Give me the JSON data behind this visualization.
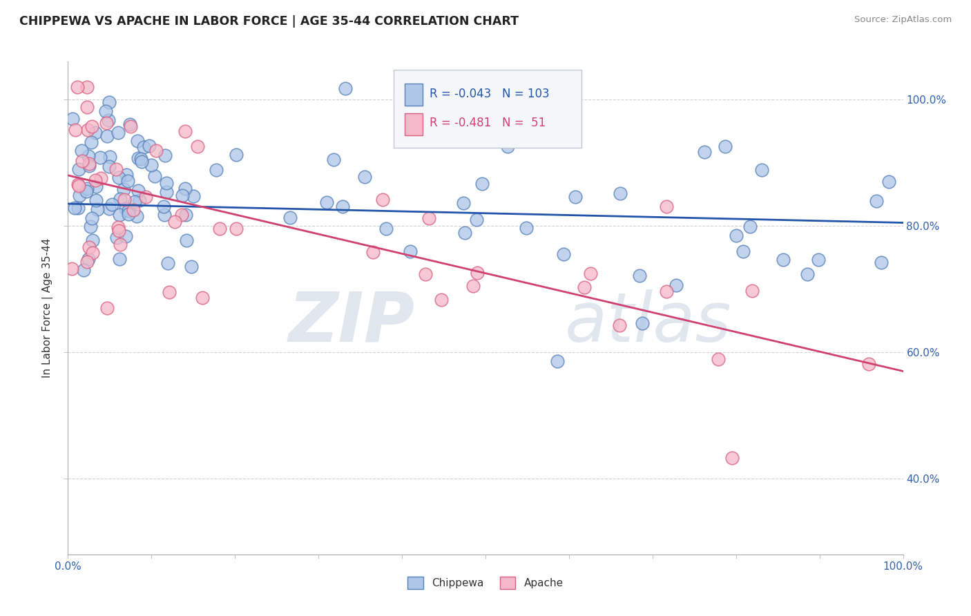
{
  "title": "CHIPPEWA VS APACHE IN LABOR FORCE | AGE 35-44 CORRELATION CHART",
  "source": "Source: ZipAtlas.com",
  "ylabel": "In Labor Force | Age 35-44",
  "xlim": [
    0.0,
    1.0
  ],
  "ylim": [
    0.28,
    1.06
  ],
  "yticks": [
    0.4,
    0.6,
    0.8,
    1.0
  ],
  "ytick_labels": [
    "40.0%",
    "60.0%",
    "80.0%",
    "100.0%"
  ],
  "xtick_labels_show": [
    "0.0%",
    "100.0%"
  ],
  "chippewa_color": "#aec6e8",
  "apache_color": "#f5b8c8",
  "chippewa_edge": "#5580b8",
  "apache_edge": "#d96080",
  "trend_chippewa_color": "#2255aa",
  "trend_apache_color": "#d04070",
  "R_chippewa": -0.043,
  "N_chippewa": 103,
  "R_apache": -0.481,
  "N_apache": 51,
  "watermark_zip": "ZIP",
  "watermark_atlas": "atlas",
  "background_color": "#ffffff",
  "grid_color": "#cccccc",
  "legend_box_color": "#e8eef5",
  "legend_border": "#b0b8cc",
  "chip_trend_y0": 0.835,
  "chip_trend_y1": 0.805,
  "apache_trend_y0": 0.88,
  "apache_trend_y1": 0.57,
  "seed_chip": 42,
  "seed_apache": 99
}
